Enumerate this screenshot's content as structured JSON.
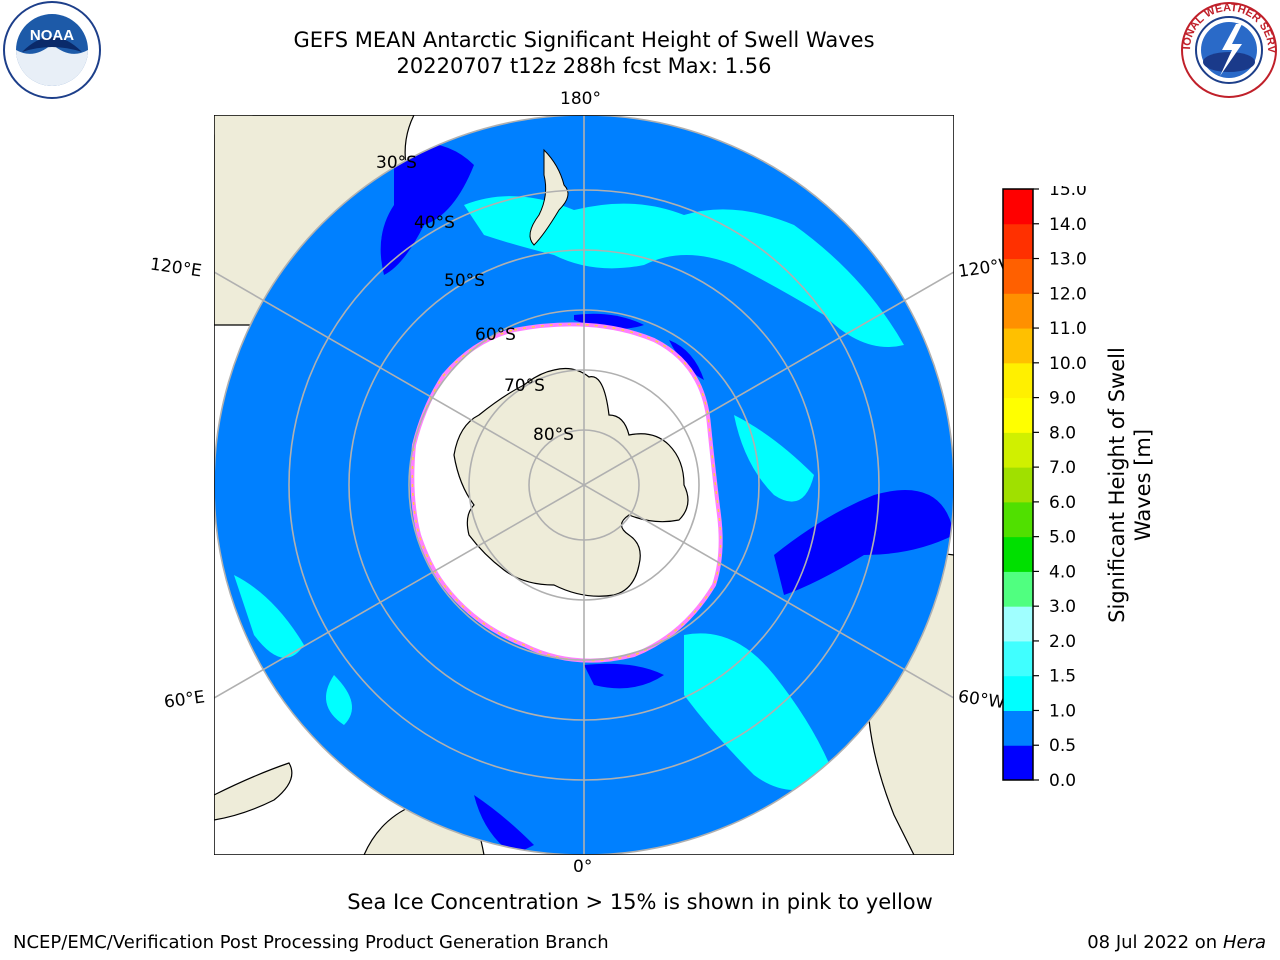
{
  "title_line1": "GEFS MEAN Antarctic Significant Height of Swell Waves",
  "title_line2": "20220707 t12z 288h fcst   Max: 1.56",
  "map": {
    "longitude_labels": [
      "180°",
      "120°E",
      "120°W",
      "60°E",
      "60°W",
      "0°"
    ],
    "latitude_labels": [
      "30°S",
      "40°S",
      "50°S",
      "60°S",
      "70°S",
      "80°S"
    ],
    "colors": {
      "land": "#eeecd9",
      "ocean_base": "#0080ff",
      "swell_low": "#0000ff",
      "swell_cyan": "#00ffff",
      "ice_pink": "#ff80ff",
      "ice_yellow": "#ffd040",
      "grid": "#b0b0b0"
    }
  },
  "colorbar": {
    "label_line1": "Significant Height of Swell",
    "label_line2": "Waves [m]",
    "ticks": [
      "0.0",
      "0.5",
      "1.0",
      "1.5",
      "2.0",
      "3.0",
      "4.0",
      "5.0",
      "6.0",
      "7.0",
      "8.0",
      "9.0",
      "10.0",
      "11.0",
      "12.0",
      "13.0",
      "14.0",
      "15.0"
    ],
    "colors": [
      "#0000ff",
      "#0080ff",
      "#00ffff",
      "#40ffff",
      "#a0ffff",
      "#50ff80",
      "#00e000",
      "#50e000",
      "#a0e000",
      "#d0f000",
      "#ffff00",
      "#fff000",
      "#ffc000",
      "#ff9000",
      "#ff6000",
      "#ff3000",
      "#ff0000"
    ]
  },
  "caption": "Sea Ice Concentration > 15% is shown in pink to yellow",
  "footer_left": "NCEP/EMC/Verification Post Processing Product Generation Branch",
  "footer_right_prefix": "08 Jul 2022 on ",
  "footer_right_host": "Hera",
  "logos": {
    "noaa_text": "NOAA",
    "nws_text": "NATIONAL WEATHER SERVICE"
  }
}
